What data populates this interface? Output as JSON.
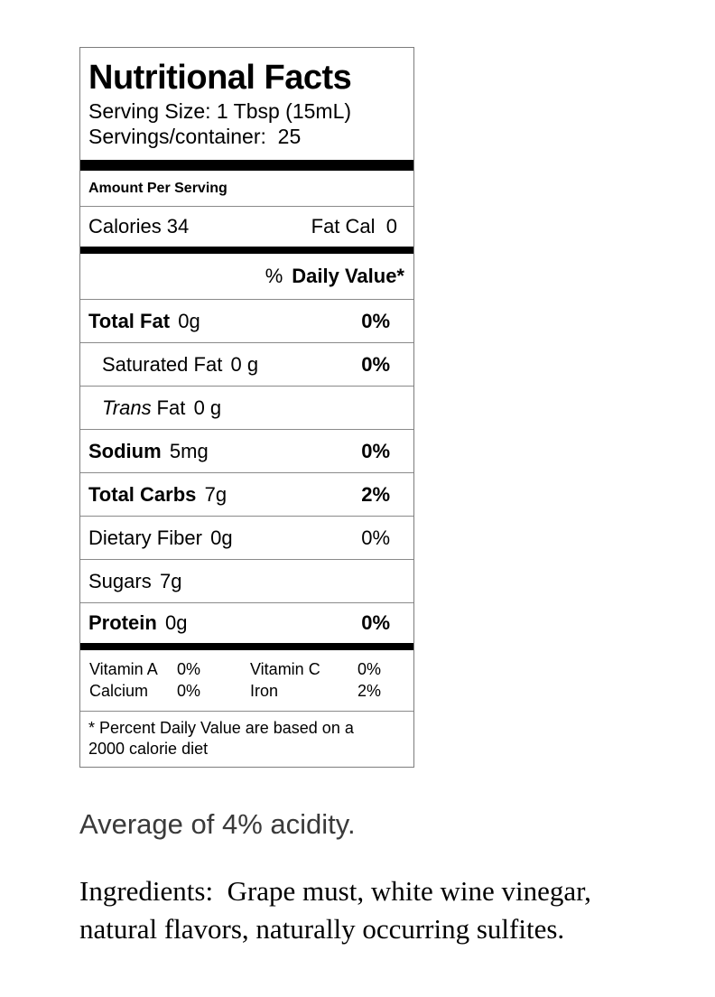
{
  "label": {
    "title": "Nutritional Facts",
    "serving_size": "Serving Size: 1 Tbsp (15mL)",
    "servings_per_container": "Servings/container:  25",
    "amount_per_serving": "Amount Per Serving",
    "calories": "Calories 34",
    "fat_calories": "Fat Cal  0",
    "dv_header_percent": "%",
    "dv_header_label": "Daily Value*",
    "rows": [
      {
        "name": "Total Fat",
        "amount": "0g",
        "dv": "0%"
      },
      {
        "name": "Saturated Fat",
        "amount": "0 g",
        "dv": "0%"
      },
      {
        "name_italic": "Trans",
        "name_rest": "Fat",
        "amount": "0 g",
        "dv": ""
      },
      {
        "name": "Sodium",
        "amount": "5mg",
        "dv": "0%"
      },
      {
        "name": "Total Carbs",
        "amount": "7g",
        "dv": "2%"
      },
      {
        "name": "Dietary Fiber",
        "amount": "0g",
        "dv": "0%"
      },
      {
        "name": "Sugars",
        "amount": "7g",
        "dv": ""
      },
      {
        "name": "Protein",
        "amount": "0g",
        "dv": "0%"
      }
    ],
    "micronutrients": {
      "row1": {
        "name1": "Vitamin A",
        "value1": "0%",
        "name2": "Vitamin C",
        "value2": "0%"
      },
      "row2": {
        "name1": "Calcium",
        "value1": "0%",
        "name2": "Iron",
        "value2": "2%"
      }
    },
    "footnote": "* Percent Daily Value are based on a\n2000 calorie diet"
  },
  "body_text": {
    "acidity_note": "Average of 4% acidity.",
    "ingredients": "Ingredients:  Grape must, white wine vinegar,\nnatural flavors, naturally occurring sulfites."
  },
  "colors": {
    "text": "#000000",
    "acidity_text": "#3a3a3a",
    "divider_thick": "#000000",
    "divider_thin": "#8a8a8a",
    "border": "#7d7d7d",
    "background": "#ffffff"
  }
}
